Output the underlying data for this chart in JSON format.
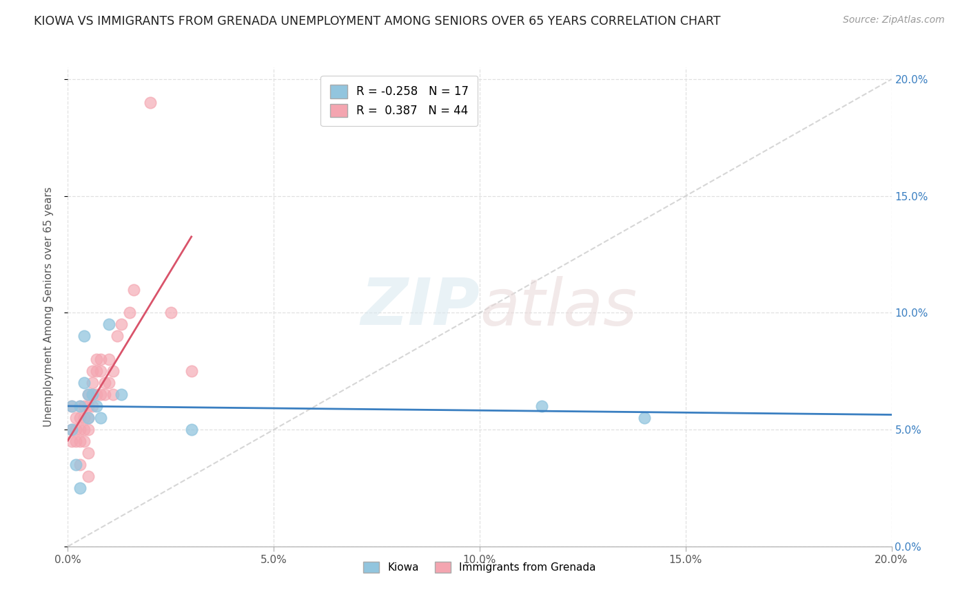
{
  "title": "KIOWA VS IMMIGRANTS FROM GRENADA UNEMPLOYMENT AMONG SENIORS OVER 65 YEARS CORRELATION CHART",
  "source": "Source: ZipAtlas.com",
  "ylabel": "Unemployment Among Seniors over 65 years",
  "xlim": [
    0.0,
    0.2
  ],
  "ylim": [
    0.0,
    0.205
  ],
  "ytick_values": [
    0.0,
    0.05,
    0.1,
    0.15,
    0.2
  ],
  "xtick_values": [
    0.0,
    0.05,
    0.1,
    0.15,
    0.2
  ],
  "kiowa_R": -0.258,
  "kiowa_N": 17,
  "grenada_R": 0.387,
  "grenada_N": 44,
  "kiowa_color": "#92c5de",
  "grenada_color": "#f4a5b0",
  "kiowa_line_color": "#3a7fc1",
  "grenada_line_color": "#d9536a",
  "diagonal_color": "#cccccc",
  "background_color": "#ffffff",
  "grid_color": "#e0e0e0",
  "title_color": "#222222",
  "source_color": "#999999",
  "watermark_zip": "ZIP",
  "watermark_atlas": "atlas",
  "kiowa_x": [
    0.001,
    0.001,
    0.002,
    0.003,
    0.003,
    0.004,
    0.004,
    0.005,
    0.005,
    0.006,
    0.007,
    0.008,
    0.01,
    0.013,
    0.03,
    0.115,
    0.14
  ],
  "kiowa_y": [
    0.06,
    0.05,
    0.035,
    0.025,
    0.06,
    0.09,
    0.07,
    0.055,
    0.065,
    0.065,
    0.06,
    0.055,
    0.095,
    0.065,
    0.05,
    0.06,
    0.055
  ],
  "grenada_x": [
    0.001,
    0.001,
    0.001,
    0.002,
    0.002,
    0.002,
    0.003,
    0.003,
    0.003,
    0.003,
    0.003,
    0.004,
    0.004,
    0.004,
    0.004,
    0.005,
    0.005,
    0.005,
    0.005,
    0.005,
    0.005,
    0.006,
    0.006,
    0.006,
    0.006,
    0.007,
    0.007,
    0.007,
    0.008,
    0.008,
    0.008,
    0.009,
    0.009,
    0.01,
    0.01,
    0.011,
    0.011,
    0.012,
    0.013,
    0.015,
    0.016,
    0.02,
    0.025,
    0.03
  ],
  "grenada_y": [
    0.06,
    0.05,
    0.045,
    0.055,
    0.05,
    0.045,
    0.06,
    0.055,
    0.05,
    0.045,
    0.035,
    0.06,
    0.055,
    0.05,
    0.045,
    0.065,
    0.06,
    0.055,
    0.05,
    0.04,
    0.03,
    0.075,
    0.07,
    0.065,
    0.06,
    0.08,
    0.075,
    0.065,
    0.08,
    0.075,
    0.065,
    0.07,
    0.065,
    0.08,
    0.07,
    0.075,
    0.065,
    0.09,
    0.095,
    0.1,
    0.11,
    0.19,
    0.1,
    0.075
  ]
}
